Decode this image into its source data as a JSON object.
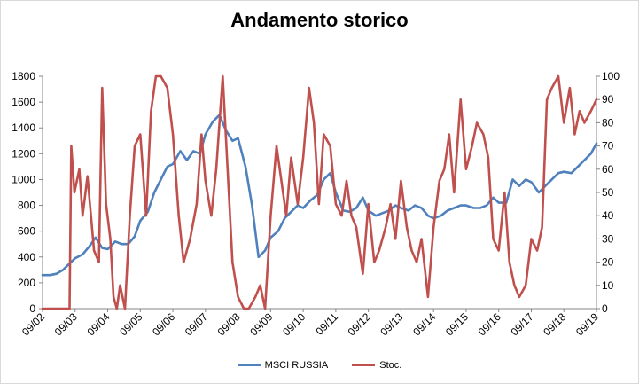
{
  "chart_data": {
    "type": "line",
    "title": "Andamento storico",
    "x_categories": [
      "09/02",
      "09/03",
      "09/04",
      "09/05",
      "09/06",
      "09/07",
      "09/08",
      "09/09",
      "09/10",
      "09/11",
      "09/12",
      "09/13",
      "09/14",
      "09/15",
      "09/16",
      "09/17",
      "09/18",
      "09/19"
    ],
    "y_left": {
      "min": 0,
      "max": 1800,
      "ticks": [
        "0",
        "200",
        "400",
        "600",
        "800",
        "1000",
        "1200",
        "1400",
        "1600",
        "1800"
      ]
    },
    "y_right": {
      "min": 0,
      "max": 100,
      "ticks": [
        "0",
        "10",
        "20",
        "30",
        "40",
        "50",
        "60",
        "70",
        "80",
        "90",
        "100"
      ]
    },
    "grid": false,
    "legend_position": "bottom",
    "series": [
      {
        "name": "MSCI RUSSIA",
        "axis": "left",
        "color": "#4f81bd",
        "x": [
          2002.67,
          2002.9,
          2003.1,
          2003.3,
          2003.5,
          2003.67,
          2003.9,
          2004.1,
          2004.3,
          2004.5,
          2004.67,
          2004.9,
          2005.1,
          2005.3,
          2005.5,
          2005.67,
          2005.9,
          2006.1,
          2006.3,
          2006.5,
          2006.67,
          2006.9,
          2007.1,
          2007.3,
          2007.5,
          2007.67,
          2007.9,
          2008.1,
          2008.3,
          2008.5,
          2008.67,
          2008.9,
          2009.1,
          2009.3,
          2009.5,
          2009.67,
          2009.9,
          2010.1,
          2010.3,
          2010.5,
          2010.67,
          2010.9,
          2011.1,
          2011.3,
          2011.5,
          2011.67,
          2011.9,
          2012.1,
          2012.3,
          2012.5,
          2012.67,
          2012.9,
          2013.1,
          2013.3,
          2013.5,
          2013.67,
          2013.9,
          2014.1,
          2014.3,
          2014.5,
          2014.67,
          2014.9,
          2015.1,
          2015.3,
          2015.5,
          2015.67,
          2015.9,
          2016.1,
          2016.3,
          2016.5,
          2016.67,
          2016.9,
          2017.1,
          2017.3,
          2017.5,
          2017.67,
          2017.9,
          2018.1,
          2018.3,
          2018.5,
          2018.67,
          2018.9,
          2019.1,
          2019.3,
          2019.5,
          2019.67
        ],
        "y": [
          260,
          260,
          270,
          300,
          350,
          390,
          420,
          480,
          550,
          470,
          460,
          520,
          500,
          500,
          560,
          680,
          750,
          900,
          1000,
          1100,
          1120,
          1220,
          1150,
          1220,
          1200,
          1350,
          1450,
          1500,
          1380,
          1300,
          1320,
          1100,
          800,
          400,
          450,
          550,
          600,
          700,
          750,
          800,
          780,
          840,
          880,
          1000,
          1050,
          900,
          760,
          750,
          780,
          860,
          760,
          720,
          740,
          760,
          800,
          780,
          760,
          800,
          780,
          720,
          700,
          720,
          760,
          780,
          800,
          800,
          780,
          780,
          800,
          860,
          820,
          820,
          1000,
          950,
          1000,
          980,
          900,
          950,
          1000,
          1050,
          1060,
          1050,
          1100,
          1150,
          1200,
          1280
        ]
      },
      {
        "name": "Stoc.",
        "axis": "right",
        "color": "#c0504d",
        "x": [
          2002.67,
          2003.5,
          2003.55,
          2003.65,
          2003.8,
          2003.9,
          2004.05,
          2004.25,
          2004.4,
          2004.5,
          2004.62,
          2004.75,
          2004.85,
          2004.95,
          2005.05,
          2005.2,
          2005.35,
          2005.5,
          2005.67,
          2005.85,
          2006.0,
          2006.15,
          2006.3,
          2006.5,
          2006.67,
          2006.85,
          2007.0,
          2007.2,
          2007.4,
          2007.55,
          2007.67,
          2007.85,
          2008.0,
          2008.2,
          2008.35,
          2008.5,
          2008.67,
          2008.85,
          2009.0,
          2009.2,
          2009.35,
          2009.5,
          2009.67,
          2009.85,
          2010.0,
          2010.15,
          2010.3,
          2010.5,
          2010.67,
          2010.85,
          2011.0,
          2011.15,
          2011.3,
          2011.5,
          2011.67,
          2011.85,
          2012.0,
          2012.15,
          2012.3,
          2012.5,
          2012.67,
          2012.85,
          2013.0,
          2013.2,
          2013.35,
          2013.5,
          2013.67,
          2013.85,
          2014.0,
          2014.15,
          2014.3,
          2014.5,
          2014.67,
          2014.85,
          2015.0,
          2015.15,
          2015.3,
          2015.5,
          2015.67,
          2015.85,
          2016.0,
          2016.2,
          2016.35,
          2016.5,
          2016.67,
          2016.85,
          2017.0,
          2017.15,
          2017.3,
          2017.5,
          2017.67,
          2017.85,
          2018.0,
          2018.15,
          2018.3,
          2018.5,
          2018.67,
          2018.85,
          2019.0,
          2019.15,
          2019.3,
          2019.5,
          2019.67
        ],
        "y": [
          0,
          0,
          70,
          50,
          60,
          40,
          57,
          25,
          20,
          95,
          45,
          30,
          5,
          0,
          10,
          0,
          40,
          70,
          75,
          40,
          85,
          100,
          100,
          95,
          75,
          40,
          20,
          30,
          45,
          75,
          55,
          40,
          60,
          100,
          60,
          20,
          5,
          0,
          0,
          5,
          10,
          0,
          40,
          70,
          55,
          40,
          65,
          45,
          65,
          95,
          80,
          45,
          75,
          70,
          45,
          40,
          55,
          40,
          35,
          15,
          45,
          20,
          25,
          35,
          45,
          30,
          55,
          35,
          25,
          20,
          30,
          5,
          35,
          55,
          60,
          75,
          50,
          90,
          60,
          70,
          80,
          75,
          65,
          30,
          25,
          50,
          20,
          10,
          5,
          10,
          30,
          25,
          35,
          90,
          95,
          100,
          80,
          95,
          75,
          85,
          80,
          85,
          90
        ]
      }
    ]
  }
}
